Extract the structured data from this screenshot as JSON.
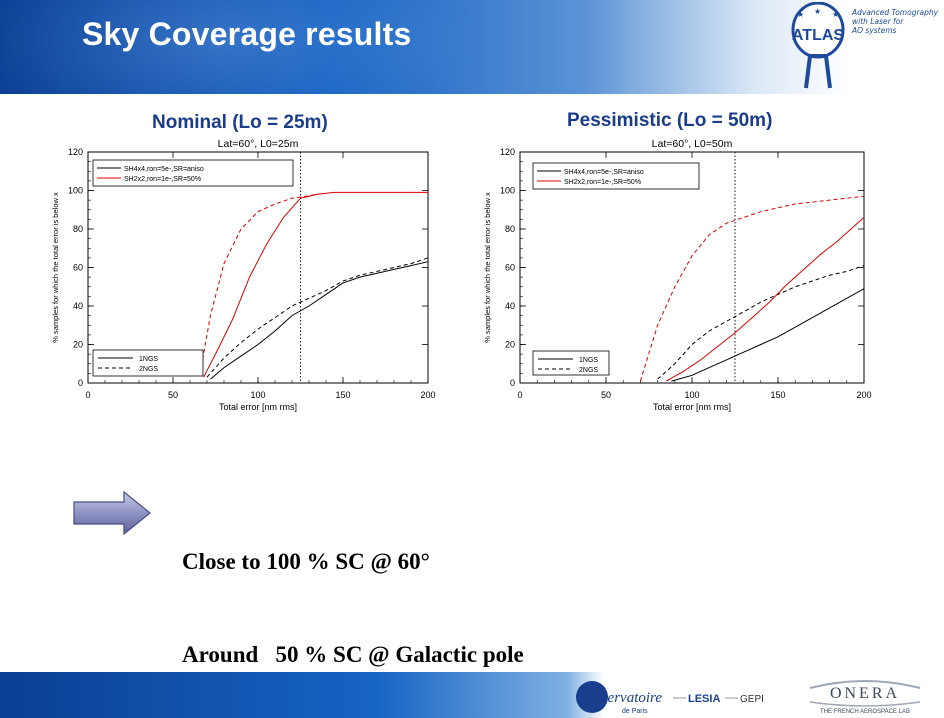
{
  "slide": {
    "title": "Sky Coverage results",
    "atlas": {
      "logo_text": "ATLAS",
      "tagline": [
        "Advanced Tomography",
        "with Laser for",
        "AO systems"
      ]
    },
    "panel_titles": [
      "Nominal (Lo = 25m)",
      "Pessimistic (Lo = 50m)"
    ],
    "conclusion": [
      "Close to 100 % SC @ 60°",
      "Around   50 % SC @ Galactic pole"
    ],
    "footer": {
      "obs_name": "l'Observatoire",
      "obs_sub": "de Paris",
      "lesia": "LESIA",
      "gepi": "GEPI",
      "onera": "ONERA",
      "onera_sub": "THE FRENCH AEROSPACE LAB"
    },
    "colors": {
      "accent": "#1b3b8c",
      "red_series": "#e00000",
      "black_series": "#000000"
    }
  },
  "chart_data": [
    {
      "type": "line",
      "title": "Lat=60°, L0=25m",
      "xlabel": "Total error [nm rms]",
      "ylabel": "% samples for which the total error is below x",
      "xlim": [
        0,
        200
      ],
      "ylim": [
        0,
        120
      ],
      "xticks": [
        0,
        50,
        100,
        150,
        200
      ],
      "yticks": [
        0,
        20,
        40,
        60,
        80,
        100,
        120
      ],
      "vline": 125,
      "legend_color": [
        "SH4x4,ron=5e-,SR=aniso",
        "SH2x2,ron=1e-,SR=50%"
      ],
      "legend_style": [
        "1NGS",
        "2NGS"
      ],
      "series": [
        {
          "name": "SH4x4,ron=5e-,SR=aniso 1NGS",
          "color": "#000000",
          "dash": false,
          "x": [
            72,
            80,
            90,
            100,
            110,
            120,
            130,
            140,
            150,
            160,
            170,
            180,
            190,
            200
          ],
          "y": [
            2,
            8,
            14,
            20,
            27,
            35,
            40,
            46,
            52,
            55,
            57,
            59,
            61,
            63
          ]
        },
        {
          "name": "SH4x4,ron=5e-,SR=aniso 2NGS",
          "color": "#000000",
          "dash": true,
          "x": [
            70,
            80,
            90,
            100,
            110,
            120,
            130,
            140,
            150,
            160,
            170,
            180,
            190,
            200
          ],
          "y": [
            3,
            13,
            21,
            28,
            34,
            40,
            44,
            48,
            53,
            56,
            58,
            60,
            62,
            65
          ]
        },
        {
          "name": "SH2x2,ron=1e-,SR=50% 1NGS",
          "color": "#e00000",
          "dash": false,
          "x": [
            68,
            75,
            85,
            95,
            105,
            115,
            125,
            130,
            135,
            145,
            160,
            180,
            200
          ],
          "y": [
            3,
            15,
            33,
            55,
            72,
            86,
            96,
            97,
            98,
            99,
            99,
            99,
            99
          ]
        },
        {
          "name": "SH2x2,ron=1e-,SR=50% 2NGS",
          "color": "#e00000",
          "dash": true,
          "x": [
            66,
            72,
            80,
            90,
            100,
            110,
            120,
            128,
            135
          ],
          "y": [
            5,
            35,
            62,
            80,
            89,
            93,
            96,
            97,
            98
          ]
        }
      ]
    },
    {
      "type": "line",
      "title": "Lat=60°, L0=50m",
      "xlabel": "Total error [nm rms]",
      "ylabel": "% samples for which the total error is below x",
      "xlim": [
        0,
        200
      ],
      "ylim": [
        0,
        120
      ],
      "xticks": [
        0,
        50,
        100,
        150,
        200
      ],
      "yticks": [
        0,
        20,
        40,
        60,
        80,
        100,
        120
      ],
      "vline": 125,
      "legend_color": [
        "SH4x4,ron=5e-,SR=aniso",
        "SH2x2,ron=1e-,SR=50%"
      ],
      "legend_style": [
        "1NGS",
        "2NGS"
      ],
      "series": [
        {
          "name": "SH4x4,ron=5e-,SR=aniso 1NGS",
          "color": "#000000",
          "dash": false,
          "x": [
            88,
            100,
            110,
            120,
            130,
            140,
            150,
            160,
            170,
            180,
            190,
            200
          ],
          "y": [
            1,
            4,
            8,
            12,
            16,
            20,
            24,
            29,
            34,
            39,
            44,
            49
          ]
        },
        {
          "name": "SH4x4,ron=5e-,SR=aniso 2NGS",
          "color": "#000000",
          "dash": true,
          "x": [
            80,
            90,
            100,
            110,
            120,
            130,
            140,
            150,
            160,
            170,
            180,
            190,
            200
          ],
          "y": [
            2,
            10,
            20,
            27,
            32,
            37,
            42,
            46,
            50,
            53,
            56,
            58,
            61
          ]
        },
        {
          "name": "SH2x2,ron=1e-,SR=50% 1NGS",
          "color": "#e00000",
          "dash": false,
          "x": [
            85,
            95,
            105,
            115,
            125,
            135,
            145,
            155,
            165,
            175,
            185,
            200
          ],
          "y": [
            1,
            6,
            12,
            19,
            26,
            34,
            42,
            51,
            59,
            67,
            74,
            86
          ]
        },
        {
          "name": "SH2x2,ron=1e-,SR=50% 2NGS",
          "color": "#e00000",
          "dash": true,
          "x": [
            70,
            80,
            90,
            100,
            110,
            120,
            130,
            140,
            150,
            160,
            170,
            180,
            190,
            200
          ],
          "y": [
            1,
            30,
            50,
            66,
            77,
            83,
            86,
            89,
            91,
            93,
            94,
            95,
            96,
            97
          ]
        }
      ]
    }
  ]
}
